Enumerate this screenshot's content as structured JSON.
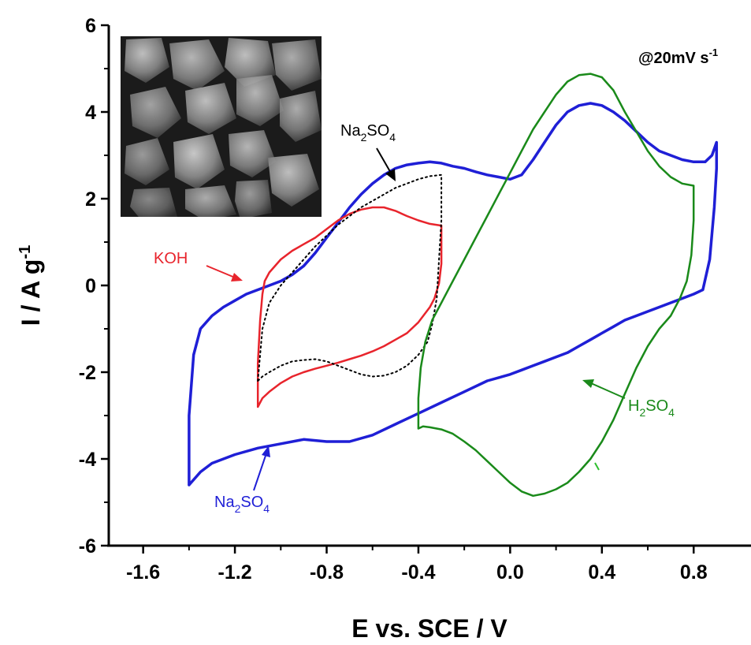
{
  "colors": {
    "blue": "#1f1fd6",
    "red": "#e8242c",
    "green": "#1a8a1a",
    "black": "#000000"
  },
  "chart_data": {
    "type": "line",
    "xlabel": "E vs. SCE / V",
    "ylabel": {
      "main": "I / A g",
      "sup": "-1"
    },
    "xlim": [
      -1.75,
      1.05
    ],
    "ylim": [
      -6,
      6
    ],
    "xticks": [
      "-1.6",
      "-1.2",
      "-0.8",
      "-0.4",
      "0.0",
      "0.4",
      "0.8"
    ],
    "yticks": [
      "-6",
      "-4",
      "-2",
      "0",
      "2",
      "4",
      "6"
    ],
    "scan_rate": {
      "main": "@20mV s",
      "sup": "-1"
    },
    "inset": "SEM micrograph",
    "annotations": {
      "na2so4_top": {
        "pre": "Na",
        "s1": "2",
        "mid": "SO",
        "s2": "4"
      },
      "koh": "KOH",
      "h2so4": {
        "pre": "H",
        "s1": "2",
        "mid": "SO",
        "s2": "4"
      },
      "na2so4_bottom": {
        "pre": "Na",
        "s1": "2",
        "mid": "SO",
        "s2": "4"
      }
    },
    "series": [
      {
        "color": "blue",
        "style": "solid",
        "x": [
          -1.4,
          -1.4,
          -1.38,
          -1.35,
          -1.3,
          -1.25,
          -1.2,
          -1.15,
          -1.1,
          -1.05,
          -1.0,
          -0.95,
          -0.9,
          -0.85,
          -0.8,
          -0.75,
          -0.7,
          -0.65,
          -0.6,
          -0.55,
          -0.5,
          -0.45,
          -0.4,
          -0.35,
          -0.3,
          -0.25,
          -0.2,
          -0.15,
          -0.1,
          -0.05,
          0.0,
          0.05,
          0.1,
          0.15,
          0.2,
          0.25,
          0.3,
          0.35,
          0.4,
          0.45,
          0.5,
          0.55,
          0.6,
          0.65,
          0.7,
          0.75,
          0.8,
          0.85,
          0.88,
          0.9,
          0.9,
          0.89,
          0.87,
          0.84,
          0.8,
          0.75,
          0.7,
          0.65,
          0.6,
          0.55,
          0.5,
          0.45,
          0.4,
          0.35,
          0.3,
          0.25,
          0.2,
          0.15,
          0.1,
          0.05,
          0.0,
          -0.1,
          -0.2,
          -0.3,
          -0.4,
          -0.5,
          -0.6,
          -0.7,
          -0.8,
          -0.9,
          -1.0,
          -1.1,
          -1.2,
          -1.3,
          -1.35,
          -1.4
        ],
        "y": [
          -4.6,
          -3.0,
          -1.6,
          -1.0,
          -0.7,
          -0.5,
          -0.35,
          -0.2,
          -0.1,
          0.0,
          0.1,
          0.25,
          0.45,
          0.75,
          1.1,
          1.45,
          1.8,
          2.1,
          2.35,
          2.55,
          2.7,
          2.78,
          2.82,
          2.85,
          2.82,
          2.75,
          2.7,
          2.62,
          2.55,
          2.5,
          2.45,
          2.55,
          2.9,
          3.3,
          3.7,
          4.0,
          4.15,
          4.2,
          4.15,
          4.0,
          3.8,
          3.55,
          3.3,
          3.1,
          3.0,
          2.9,
          2.85,
          2.85,
          3.0,
          3.3,
          2.7,
          1.8,
          0.6,
          -0.1,
          -0.2,
          -0.3,
          -0.4,
          -0.5,
          -0.6,
          -0.7,
          -0.8,
          -0.95,
          -1.1,
          -1.25,
          -1.4,
          -1.55,
          -1.65,
          -1.75,
          -1.85,
          -1.95,
          -2.05,
          -2.2,
          -2.45,
          -2.7,
          -2.95,
          -3.2,
          -3.45,
          -3.6,
          -3.6,
          -3.55,
          -3.65,
          -3.75,
          -3.9,
          -4.1,
          -4.3,
          -4.6
        ]
      },
      {
        "color": "red",
        "style": "solid",
        "x": [
          -1.1,
          -1.1,
          -1.09,
          -1.08,
          -1.07,
          -1.05,
          -1.0,
          -0.95,
          -0.9,
          -0.85,
          -0.8,
          -0.75,
          -0.7,
          -0.65,
          -0.6,
          -0.55,
          -0.5,
          -0.45,
          -0.4,
          -0.35,
          -0.3,
          -0.3,
          -0.3,
          -0.31,
          -0.33,
          -0.35,
          -0.4,
          -0.45,
          -0.5,
          -0.55,
          -0.6,
          -0.65,
          -0.7,
          -0.75,
          -0.8,
          -0.85,
          -0.9,
          -0.95,
          -1.0,
          -1.05,
          -1.08,
          -1.1
        ],
        "y": [
          -2.8,
          -1.8,
          -0.8,
          -0.2,
          0.1,
          0.3,
          0.6,
          0.8,
          0.95,
          1.1,
          1.3,
          1.5,
          1.65,
          1.75,
          1.8,
          1.8,
          1.72,
          1.6,
          1.5,
          1.42,
          1.38,
          1.0,
          0.5,
          0.05,
          -0.3,
          -0.5,
          -0.85,
          -1.1,
          -1.25,
          -1.4,
          -1.52,
          -1.62,
          -1.7,
          -1.78,
          -1.85,
          -1.92,
          -2.0,
          -2.1,
          -2.25,
          -2.45,
          -2.6,
          -2.8
        ]
      },
      {
        "color": "black",
        "style": "dotted",
        "x": [
          -1.1,
          -1.08,
          -1.05,
          -1.0,
          -0.95,
          -0.9,
          -0.85,
          -0.8,
          -0.75,
          -0.7,
          -0.65,
          -0.6,
          -0.55,
          -0.5,
          -0.45,
          -0.4,
          -0.35,
          -0.3,
          -0.3,
          -0.31,
          -0.32,
          -0.34,
          -0.36,
          -0.4,
          -0.45,
          -0.5,
          -0.55,
          -0.6,
          -0.65,
          -0.7,
          -0.75,
          -0.8,
          -0.85,
          -0.9,
          -0.95,
          -1.0,
          -1.05,
          -1.08,
          -1.1
        ],
        "y": [
          -2.2,
          -1.0,
          -0.4,
          0.0,
          0.3,
          0.6,
          0.9,
          1.15,
          1.4,
          1.6,
          1.8,
          1.95,
          2.1,
          2.25,
          2.35,
          2.45,
          2.52,
          2.55,
          1.5,
          0.6,
          -0.3,
          -0.9,
          -1.3,
          -1.6,
          -1.85,
          -2.0,
          -2.08,
          -2.1,
          -2.05,
          -1.95,
          -1.85,
          -1.75,
          -1.7,
          -1.72,
          -1.75,
          -1.85,
          -2.0,
          -2.1,
          -2.2
        ]
      },
      {
        "color": "green",
        "style": "solid",
        "x": [
          -0.4,
          -0.4,
          -0.39,
          -0.37,
          -0.34,
          -0.3,
          -0.25,
          -0.2,
          -0.15,
          -0.1,
          -0.05,
          0.0,
          0.05,
          0.1,
          0.15,
          0.2,
          0.25,
          0.3,
          0.35,
          0.4,
          0.45,
          0.5,
          0.55,
          0.6,
          0.65,
          0.7,
          0.75,
          0.8,
          0.8,
          0.79,
          0.77,
          0.74,
          0.7,
          0.65,
          0.6,
          0.55,
          0.5,
          0.45,
          0.4,
          0.35,
          0.3,
          0.25,
          0.2,
          0.15,
          0.1,
          0.05,
          0.0,
          -0.05,
          -0.1,
          -0.15,
          -0.2,
          -0.25,
          -0.3,
          -0.35,
          -0.38,
          -0.4
        ],
        "y": [
          -3.3,
          -2.6,
          -1.9,
          -1.3,
          -0.8,
          -0.4,
          0.1,
          0.6,
          1.1,
          1.6,
          2.1,
          2.6,
          3.1,
          3.6,
          4.0,
          4.4,
          4.7,
          4.85,
          4.88,
          4.8,
          4.5,
          4.0,
          3.55,
          3.1,
          2.75,
          2.5,
          2.35,
          2.3,
          1.5,
          0.7,
          0.1,
          -0.3,
          -0.7,
          -1.0,
          -1.4,
          -1.9,
          -2.5,
          -3.1,
          -3.6,
          -4.0,
          -4.3,
          -4.55,
          -4.7,
          -4.8,
          -4.85,
          -4.75,
          -4.55,
          -4.3,
          -4.05,
          -3.8,
          -3.6,
          -3.42,
          -3.32,
          -3.27,
          -3.25,
          -3.3
        ]
      }
    ]
  }
}
